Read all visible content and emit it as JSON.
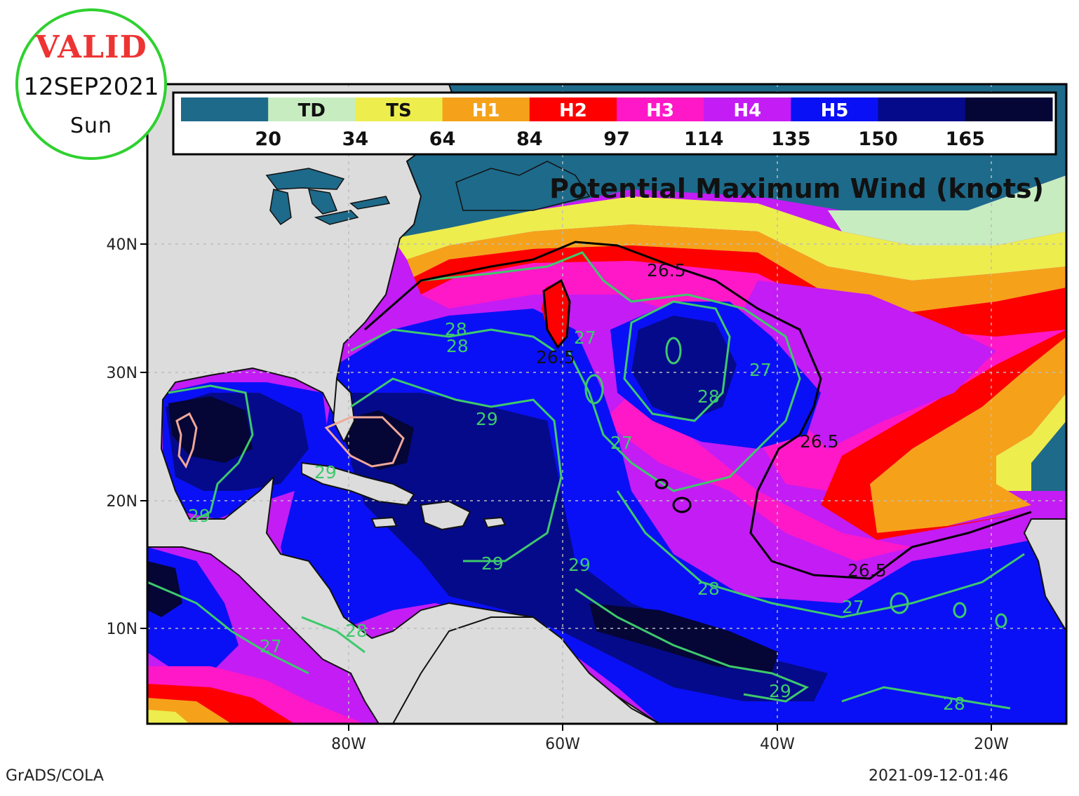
{
  "valid_badge": {
    "label": "VALID",
    "date": "12SEP2021",
    "day": "Sun"
  },
  "colorbar": {
    "categories": [
      "",
      "TD",
      "TS",
      "H1",
      "H2",
      "H3",
      "H4",
      "H5",
      "",
      ""
    ],
    "colors": [
      "#1e6a8a",
      "#c7ecc0",
      "#eded4e",
      "#f5a21a",
      "#ff0000",
      "#ff18c8",
      "#c41cf5",
      "#0a10f5",
      "#050a8a",
      "#050536"
    ],
    "label_colors": [
      "#ffffff",
      "#111111",
      "#111111",
      "#ffffff",
      "#ffffff",
      "#ffffff",
      "#ffffff",
      "#ffffff",
      "#ffffff",
      "#ffffff"
    ],
    "thresholds": [
      "20",
      "34",
      "64",
      "84",
      "97",
      "114",
      "135",
      "150",
      "165"
    ]
  },
  "map": {
    "title": "Potential Maximum Wind (knots)",
    "lat_labels": [
      "40N",
      "30N",
      "20N",
      "10N"
    ],
    "lon_labels": [
      "80W",
      "60W",
      "40W",
      "20W"
    ],
    "land_color": "#dcdcdc",
    "coastline_color": "#000000",
    "contour_color": "#3ec96d",
    "sst_contour_labels": [
      "26.5",
      "26.5",
      "26.5",
      "26.5",
      "27",
      "27",
      "27",
      "27",
      "27",
      "28",
      "28",
      "28",
      "28",
      "28",
      "28",
      "29",
      "29",
      "29",
      "29",
      "29",
      "29"
    ]
  },
  "footer": {
    "source": "GrADS/COLA",
    "timestamp": "2021-09-12-01:46"
  }
}
